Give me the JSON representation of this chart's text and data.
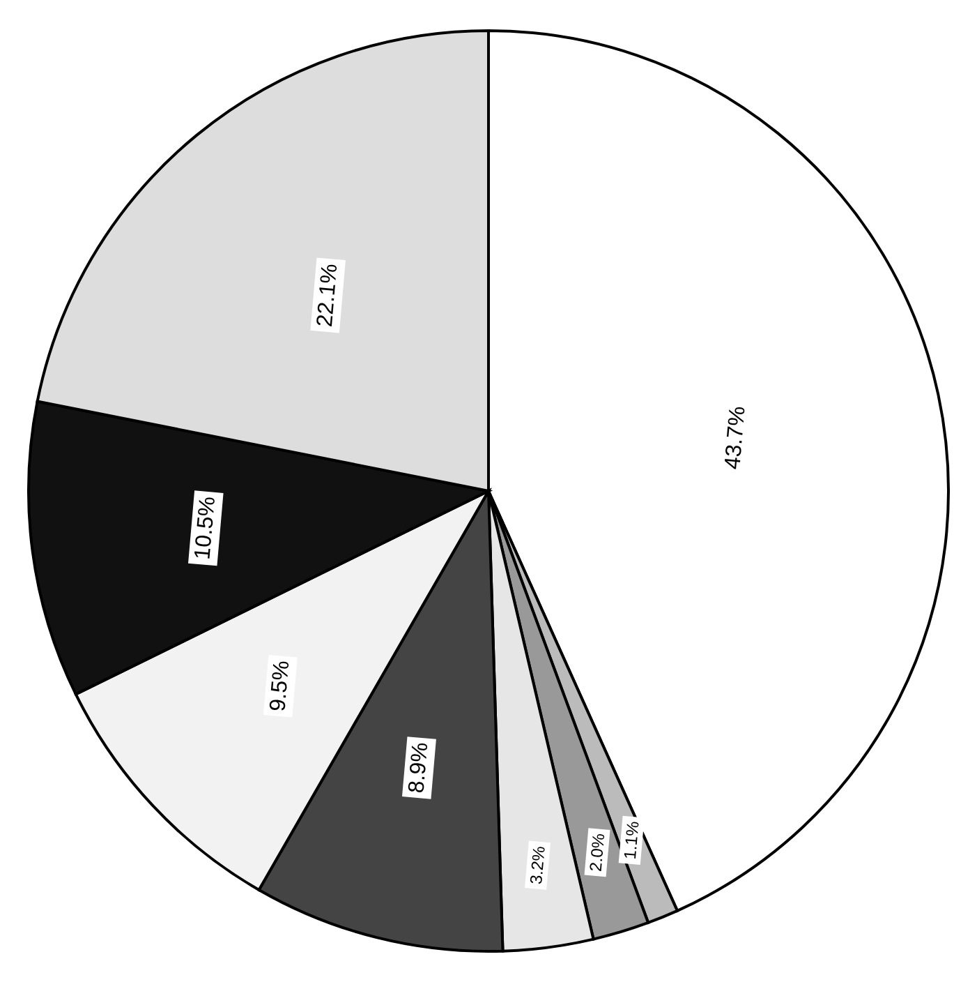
{
  "chart_data": {
    "type": "pie",
    "categories": [
      null,
      null,
      null,
      null,
      null,
      null,
      null,
      null
    ],
    "values": [
      43.7,
      1.1,
      2.0,
      3.2,
      8.9,
      9.5,
      10.5,
      22.1
    ],
    "colors": [
      "#ffffff",
      "#bbbbbb",
      "#999999",
      "#e6e6e6",
      "#444444",
      "#f2f2f2",
      "#111111",
      "#dddddd"
    ],
    "value_labels": [
      "43.7%",
      "1.1%",
      "2.0%",
      "3.2%",
      "8.9%",
      "9.5%",
      "10.5%",
      "22.1%"
    ]
  }
}
